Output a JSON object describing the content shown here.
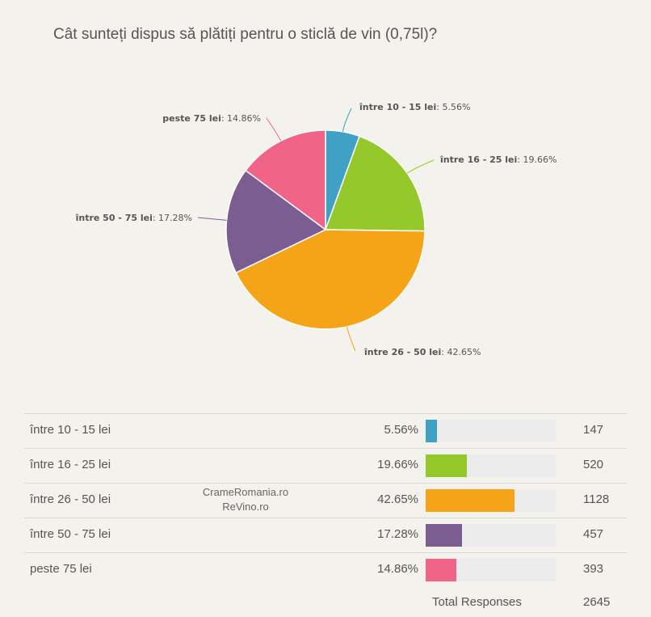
{
  "title": "Cât sunteți dispus să plătiți pentru o sticlă de vin (0,75l)?",
  "chart_data": {
    "type": "pie",
    "title": "Cât sunteți dispus să plătiți pentru o sticlă de vin (0,75l)?",
    "slices": [
      {
        "name": "între 10 - 15 lei",
        "percent": 5.56,
        "percent_label": "5.56%",
        "count": 147,
        "color": "#3fa2c4"
      },
      {
        "name": "între 16 - 25 lei",
        "percent": 19.66,
        "percent_label": "19.66%",
        "count": 520,
        "color": "#95c82a"
      },
      {
        "name": "între 26 - 50 lei",
        "percent": 42.65,
        "percent_label": "42.65%",
        "count": 1128,
        "color": "#f5a418"
      },
      {
        "name": "între 50 - 75 lei",
        "percent": 17.28,
        "percent_label": "17.28%",
        "count": 457,
        "color": "#7b5d92"
      },
      {
        "name": "peste 75 lei",
        "percent": 14.86,
        "percent_label": "14.86%",
        "count": 393,
        "color": "#f06488"
      }
    ],
    "total_label": "Total Responses",
    "total": 2645
  },
  "watermark": {
    "line1": "CrameRomania.ro",
    "line2": "ReVino.ro"
  }
}
